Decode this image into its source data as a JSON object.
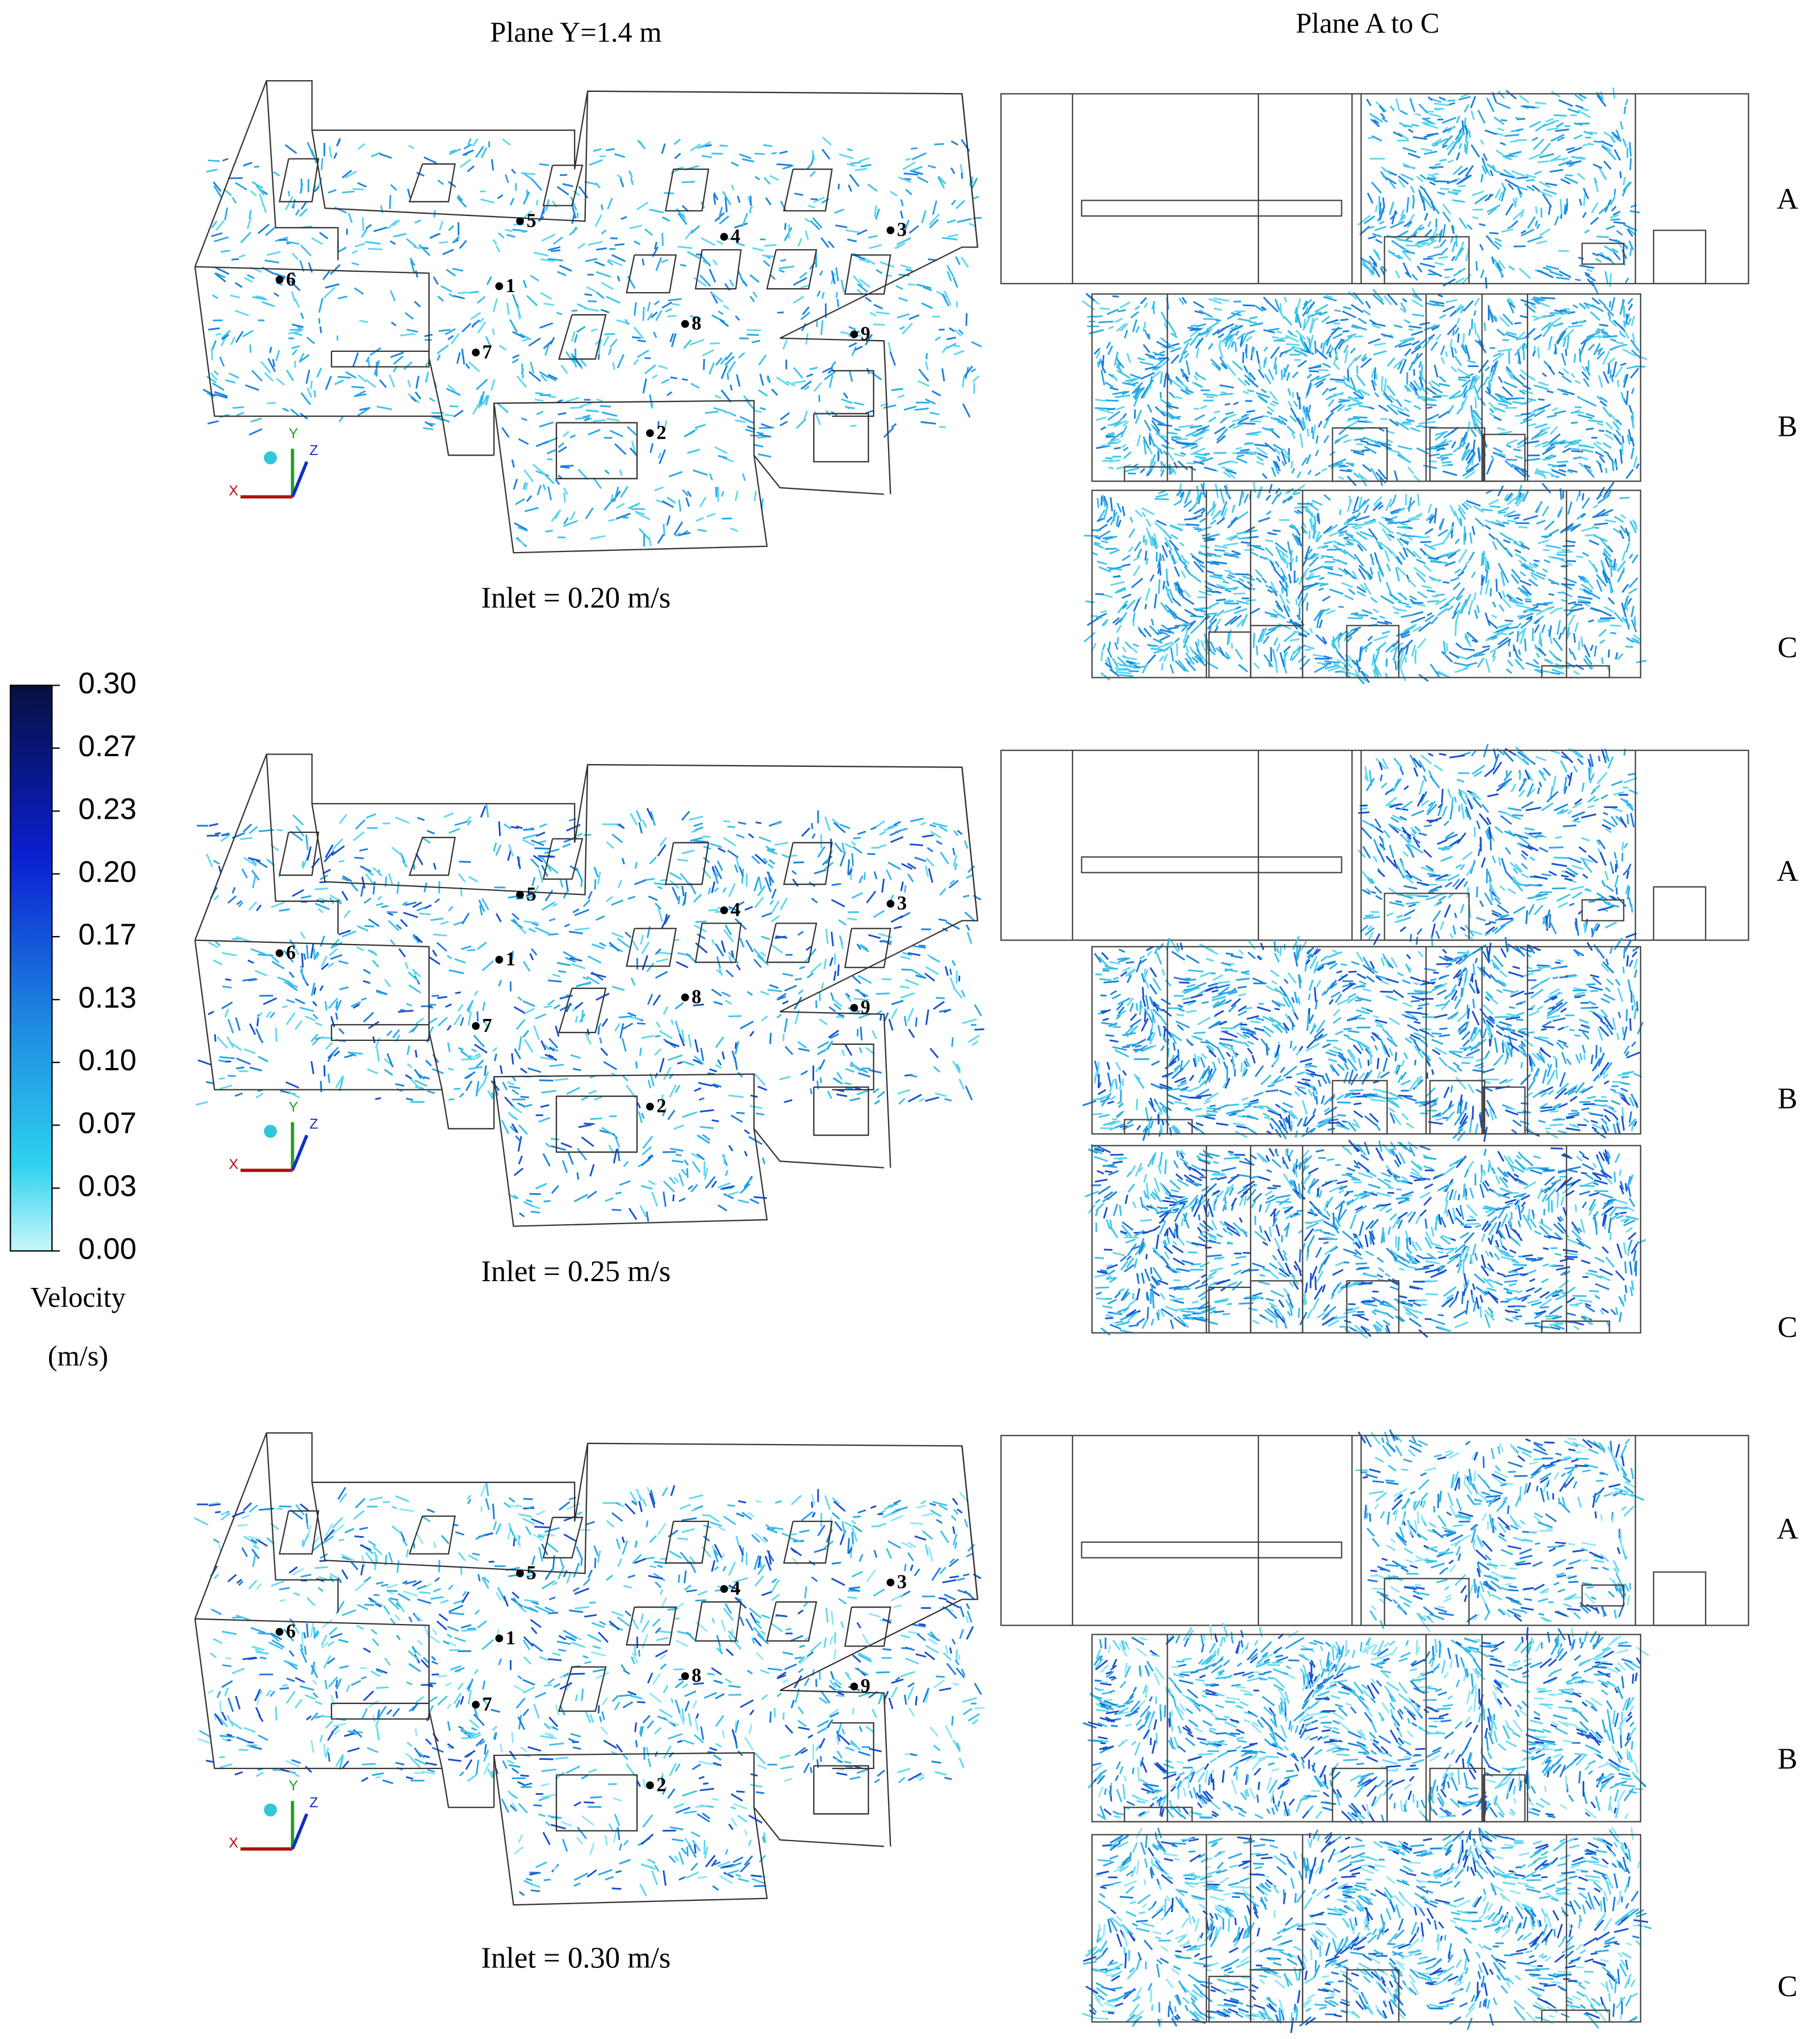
{
  "column_titles": [
    "Plane Y=1.4 m",
    "Plane A to C"
  ],
  "rows": [
    {
      "inlet": "Inlet = 0.20 m/s",
      "plane_labels": [
        "A",
        "B",
        "C"
      ]
    },
    {
      "inlet": "Inlet = 0.25 m/s",
      "plane_labels": [
        "A",
        "B",
        "C"
      ]
    },
    {
      "inlet": "Inlet = 0.30 m/s",
      "plane_labels": [
        "A",
        "B",
        "C"
      ]
    }
  ],
  "point_labels": [
    1,
    2,
    3,
    4,
    5,
    6,
    7,
    8,
    9
  ],
  "axis_labels": [
    "X",
    "Y",
    "Z"
  ],
  "colorbar": {
    "lim": [
      0,
      0.3
    ],
    "ticks": [
      {
        "value": 0.3,
        "label": "0.30"
      },
      {
        "value": 0.2667,
        "label": "0.27"
      },
      {
        "value": 0.2333,
        "label": "0.23"
      },
      {
        "value": 0.2,
        "label": "0.20"
      },
      {
        "value": 0.1667,
        "label": "0.17"
      },
      {
        "value": 0.1333,
        "label": "0.13"
      },
      {
        "value": 0.1,
        "label": "0.10"
      },
      {
        "value": 0.0667,
        "label": "0.07"
      },
      {
        "value": 0.0333,
        "label": "0.03"
      },
      {
        "value": 0,
        "label": "0.00"
      }
    ],
    "title": "Velocity",
    "unit": "(m/s)"
  }
}
